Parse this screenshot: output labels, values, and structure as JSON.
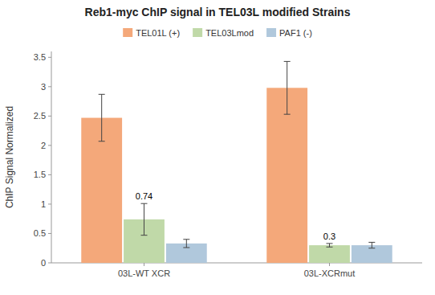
{
  "chart_data": {
    "type": "bar",
    "title": "Reb1-myc ChIP signal in TEL03L modified Strains",
    "y_label": "ChIP Signal Normalized",
    "categories": [
      "03L-WT XCR",
      "03L-XCRmut"
    ],
    "series": [
      {
        "name": "TEL01L (+)",
        "color": "#F4A87A",
        "values": [
          2.47,
          2.98
        ],
        "errors": [
          0.4,
          0.45
        ]
      },
      {
        "name": "TEL03Lmod",
        "color": "#C0D9A8",
        "values": [
          0.74,
          0.3
        ],
        "errors": [
          0.27,
          0.03
        ],
        "data_labels": true
      },
      {
        "name": "PAF1 (-)",
        "color": "#B0C8DC",
        "values": [
          0.33,
          0.3
        ],
        "errors": [
          0.07,
          0.05
        ]
      }
    ],
    "ylim": [
      0,
      3.6
    ],
    "yticks": [
      0,
      0.5,
      1,
      1.5,
      2,
      2.5,
      3,
      3.5
    ],
    "grid": false,
    "legend": "top"
  }
}
